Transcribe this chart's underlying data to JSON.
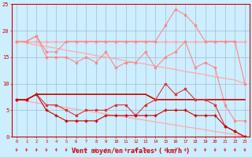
{
  "x": [
    0,
    1,
    2,
    3,
    4,
    5,
    6,
    7,
    8,
    9,
    10,
    11,
    12,
    13,
    14,
    15,
    16,
    17,
    18,
    19,
    20,
    21,
    22,
    23
  ],
  "line_flat18": [
    18,
    18,
    18,
    18,
    18,
    18,
    18,
    18,
    18,
    18,
    18,
    18,
    18,
    18,
    18,
    18,
    18,
    18,
    18,
    18,
    18,
    18,
    18,
    18
  ],
  "line_peak": [
    18,
    18,
    19,
    16,
    16,
    18,
    18,
    18,
    18,
    18,
    18,
    18,
    18,
    18,
    18,
    21,
    24,
    23,
    21,
    18,
    18,
    18,
    18,
    10
  ],
  "line_mid": [
    18,
    18,
    19,
    15,
    15,
    15,
    14,
    15,
    14,
    16,
    13,
    14,
    14,
    16,
    13,
    15,
    16,
    18,
    13,
    14,
    13,
    6,
    3,
    3
  ],
  "line_diag1": [
    18,
    17.7,
    17.3,
    17,
    16.7,
    16.3,
    16,
    15.7,
    15.3,
    15,
    14.7,
    14.3,
    14,
    13.7,
    13.3,
    13,
    12.7,
    12.3,
    12,
    11.7,
    11.3,
    11,
    10.7,
    10
  ],
  "line_flat7": [
    7,
    7,
    8,
    8,
    8,
    8,
    8,
    8,
    8,
    8,
    8,
    8,
    8,
    8,
    7,
    7,
    7,
    7,
    7,
    7,
    7,
    7,
    7,
    7
  ],
  "line_spiky": [
    7,
    7,
    8,
    6,
    6,
    5,
    4,
    5,
    5,
    5,
    6,
    6,
    4,
    6,
    7,
    10,
    8,
    9,
    7,
    7,
    6,
    2,
    1,
    0
  ],
  "line_low": [
    7,
    7,
    8,
    5,
    4,
    3,
    3,
    3,
    3,
    4,
    4,
    4,
    4,
    4,
    4,
    5,
    5,
    5,
    4,
    4,
    4,
    2,
    1,
    0
  ],
  "line_diag2": [
    7,
    6.7,
    6.4,
    6.1,
    5.8,
    5.5,
    5.2,
    4.9,
    4.6,
    4.3,
    4.0,
    3.7,
    3.4,
    3.1,
    2.8,
    2.5,
    2.2,
    1.9,
    1.6,
    1.3,
    1.0,
    0.7,
    0.4,
    0
  ],
  "xlabel": "Vent moyen/en rafales ( km/h )",
  "ylim": [
    0,
    25
  ],
  "xlim_min": -0.5,
  "xlim_max": 23.5,
  "bg_color": "#cceeff",
  "grid_color": "#aabbcc",
  "color_dark_red": "#cc0000",
  "color_mid_red": "#dd3333",
  "color_light_pink": "#ffaaaa",
  "color_pink": "#ff8888",
  "yticks": [
    0,
    5,
    10,
    15,
    20,
    25
  ]
}
